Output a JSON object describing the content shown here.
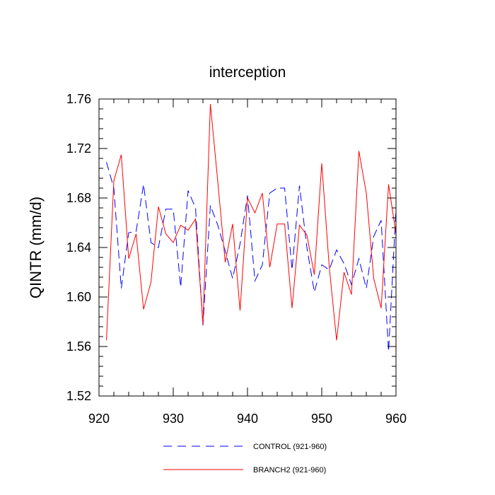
{
  "chart_data": {
    "type": "line",
    "title": "interception",
    "xlabel": "",
    "ylabel": "QINTR  (mm/d)",
    "xlim": [
      920,
      960
    ],
    "ylim": [
      1.52,
      1.76
    ],
    "x_ticks": [
      "920",
      "930",
      "940",
      "950",
      "960"
    ],
    "y_ticks": [
      "1.52",
      "1.56",
      "1.60",
      "1.64",
      "1.68",
      "1.72",
      "1.76"
    ],
    "grid": false,
    "legend_position": "bottom",
    "x": [
      921,
      922,
      923,
      924,
      925,
      926,
      927,
      928,
      929,
      930,
      931,
      932,
      933,
      934,
      935,
      936,
      937,
      938,
      939,
      940,
      941,
      942,
      943,
      944,
      945,
      946,
      947,
      948,
      949,
      950,
      951,
      952,
      953,
      954,
      955,
      956,
      957,
      958,
      959,
      960
    ],
    "series": [
      {
        "name": "CONTROL (921-960)",
        "color": "#0000ff",
        "style": "dashed",
        "values": [
          1.709,
          1.688,
          1.607,
          1.652,
          1.653,
          1.691,
          1.644,
          1.64,
          1.671,
          1.671,
          1.608,
          1.686,
          1.672,
          1.577,
          1.674,
          1.658,
          1.637,
          1.615,
          1.643,
          1.682,
          1.613,
          1.626,
          1.684,
          1.688,
          1.688,
          1.622,
          1.69,
          1.64,
          1.604,
          1.626,
          1.622,
          1.638,
          1.627,
          1.61,
          1.631,
          1.607,
          1.649,
          1.662,
          1.556,
          1.671
        ]
      },
      {
        "name": "BRANCH2 (921-960)",
        "color": "#ff0000",
        "style": "solid",
        "values": [
          1.565,
          1.694,
          1.715,
          1.631,
          1.651,
          1.59,
          1.612,
          1.673,
          1.651,
          1.644,
          1.658,
          1.654,
          1.663,
          1.578,
          1.756,
          1.693,
          1.628,
          1.659,
          1.589,
          1.68,
          1.668,
          1.684,
          1.624,
          1.659,
          1.659,
          1.591,
          1.658,
          1.65,
          1.618,
          1.708,
          1.625,
          1.565,
          1.62,
          1.602,
          1.718,
          1.684,
          1.615,
          1.591,
          1.691,
          1.651
        ]
      }
    ]
  }
}
